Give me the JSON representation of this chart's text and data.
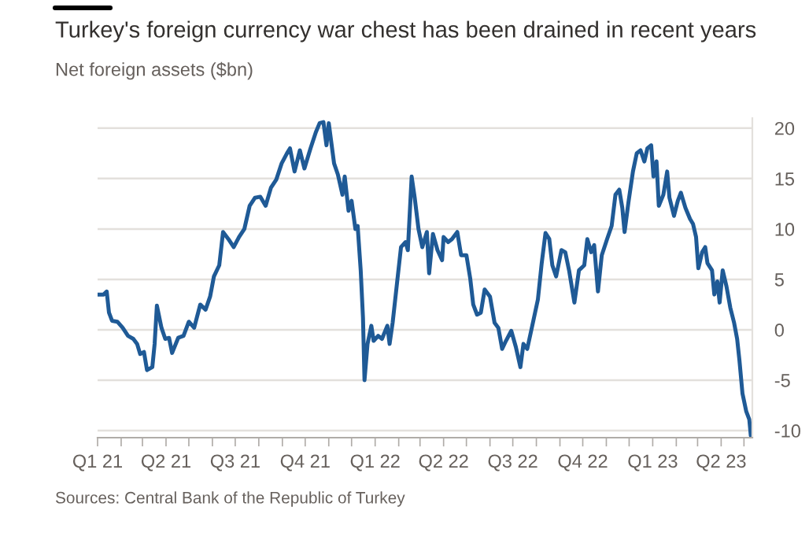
{
  "chart_data": {
    "type": "line",
    "title": "Turkey's foreign currency war chest has been drained in recent years",
    "subtitle": "Net foreign assets ($bn)",
    "annotations": [
      "Sources: Central Bank of the Republic of Turkey"
    ],
    "x": [
      "2021-01-01",
      "2021-01-09",
      "2021-01-13",
      "2021-01-16",
      "2021-01-20",
      "2021-01-27",
      "2021-02-03",
      "2021-02-10",
      "2021-02-17",
      "2021-02-22",
      "2021-02-26",
      "2021-03-03",
      "2021-03-07",
      "2021-03-14",
      "2021-03-17",
      "2021-03-20",
      "2021-03-26",
      "2021-03-31",
      "2021-04-05",
      "2021-04-09",
      "2021-04-17",
      "2021-04-24",
      "2021-05-01",
      "2021-05-08",
      "2021-05-16",
      "2021-05-23",
      "2021-05-29",
      "2021-06-03",
      "2021-06-10",
      "2021-06-15",
      "2021-06-22",
      "2021-06-29",
      "2021-07-06",
      "2021-07-13",
      "2021-07-20",
      "2021-07-27",
      "2021-08-03",
      "2021-08-10",
      "2021-08-17",
      "2021-08-24",
      "2021-08-31",
      "2021-09-07",
      "2021-09-11",
      "2021-09-17",
      "2021-09-24",
      "2021-09-30",
      "2021-10-08",
      "2021-10-15",
      "2021-10-20",
      "2021-10-25",
      "2021-10-29",
      "2021-11-01",
      "2021-11-08",
      "2021-11-13",
      "2021-11-19",
      "2021-11-22",
      "2021-11-27",
      "2021-12-01",
      "2021-12-06",
      "2021-12-09",
      "2021-12-13",
      "2021-12-16",
      "2021-12-18",
      "2021-12-22",
      "2021-12-27",
      "2021-12-30",
      "2022-01-05",
      "2022-01-10",
      "2022-01-17",
      "2022-01-20",
      "2022-01-24",
      "2022-01-30",
      "2022-02-04",
      "2022-02-10",
      "2022-02-13",
      "2022-02-18",
      "2022-02-22",
      "2022-02-27",
      "2022-03-04",
      "2022-03-10",
      "2022-03-13",
      "2022-03-18",
      "2022-03-24",
      "2022-03-30",
      "2022-04-01",
      "2022-04-07",
      "2022-04-12",
      "2022-04-19",
      "2022-04-24",
      "2022-05-01",
      "2022-05-06",
      "2022-05-10",
      "2022-05-15",
      "2022-05-20",
      "2022-05-25",
      "2022-06-01",
      "2022-06-07",
      "2022-06-12",
      "2022-06-17",
      "2022-06-22",
      "2022-06-29",
      "2022-07-05",
      "2022-07-11",
      "2022-07-15",
      "2022-07-20",
      "2022-07-28",
      "2022-08-03",
      "2022-08-08",
      "2022-08-13",
      "2022-08-18",
      "2022-08-22",
      "2022-08-27",
      "2022-09-03",
      "2022-09-08",
      "2022-09-13",
      "2022-09-20",
      "2022-09-26",
      "2022-10-03",
      "2022-10-07",
      "2022-10-12",
      "2022-10-16",
      "2022-10-21",
      "2022-10-26",
      "2022-11-02",
      "2022-11-08",
      "2022-11-13",
      "2022-11-18",
      "2022-11-22",
      "2022-11-25",
      "2022-11-30",
      "2022-12-06",
      "2022-12-11",
      "2022-12-16",
      "2022-12-21",
      "2022-12-25",
      "2022-12-30",
      "2023-01-02",
      "2023-01-06",
      "2023-01-09",
      "2023-01-15",
      "2023-01-20",
      "2023-01-23",
      "2023-01-29",
      "2023-02-03",
      "2023-02-07",
      "2023-02-13",
      "2023-02-19",
      "2023-02-23",
      "2023-02-27",
      "2023-03-02",
      "2023-03-07",
      "2023-03-11",
      "2023-03-14",
      "2023-03-20",
      "2023-03-23",
      "2023-03-27",
      "2023-03-30",
      "2023-04-03",
      "2023-04-08",
      "2023-04-13",
      "2023-04-18",
      "2023-04-22",
      "2023-04-25",
      "2023-04-29",
      "2023-05-04",
      "2023-05-08",
      "2023-05-10"
    ],
    "series": [
      {
        "color": "#1f5a96",
        "values": [
          3.5,
          3.5,
          3.8,
          1.7,
          0.9,
          0.8,
          0.2,
          -0.6,
          -0.9,
          -1.4,
          -2.4,
          -2.2,
          -4.0,
          -3.7,
          -1.4,
          2.4,
          0.2,
          -0.9,
          -0.8,
          -2.3,
          -0.8,
          -0.6,
          0.8,
          0.2,
          2.5,
          2.0,
          3.3,
          5.3,
          6.4,
          9.7,
          9.0,
          8.2,
          9.2,
          10.0,
          12.3,
          13.1,
          13.2,
          12.3,
          14.1,
          14.9,
          16.5,
          17.5,
          18.0,
          15.7,
          17.8,
          16.0,
          18.0,
          19.6,
          20.5,
          20.6,
          18.3,
          20.5,
          16.5,
          15.4,
          13.4,
          15.2,
          11.8,
          12.8,
          10.0,
          10.3,
          5.9,
          1.2,
          -5.0,
          -1.4,
          0.4,
          -1.1,
          -0.6,
          -0.9,
          0.4,
          -1.4,
          0.7,
          4.8,
          8.2,
          8.7,
          7.9,
          15.2,
          13.1,
          10.0,
          8.2,
          9.7,
          5.6,
          9.5,
          7.9,
          6.9,
          9.2,
          8.7,
          9.0,
          9.7,
          7.4,
          7.4,
          5.1,
          2.5,
          1.5,
          1.7,
          4.0,
          3.3,
          0.7,
          0.2,
          -1.9,
          -1.1,
          -0.1,
          -1.7,
          -3.7,
          -1.4,
          -1.9,
          0.9,
          3.0,
          6.6,
          9.6,
          9.0,
          6.4,
          5.3,
          7.9,
          7.7,
          5.9,
          2.7,
          5.9,
          6.4,
          9.0,
          7.7,
          8.4,
          3.8,
          7.4,
          9.0,
          10.3,
          13.4,
          13.9,
          12.1,
          9.7,
          12.6,
          15.7,
          17.5,
          17.8,
          16.7,
          18.0,
          18.3,
          15.2,
          16.7,
          12.3,
          13.4,
          15.7,
          13.1,
          11.3,
          12.8,
          13.6,
          12.1,
          11.0,
          10.5,
          9.2,
          6.1,
          7.7,
          8.2,
          6.6,
          5.9,
          3.5,
          4.8,
          2.7,
          5.9,
          4.3,
          2.2,
          0.7,
          -0.9,
          -3.0,
          -6.3,
          -8.1,
          -8.9,
          -10.5
        ]
      }
    ],
    "xlim": [
      "2021-01-01",
      "2023-05-12"
    ],
    "xticks": [
      {
        "value": "2021-01-01",
        "label": "Q1 21"
      },
      {
        "value": "2021-02-01",
        "label": null
      },
      {
        "value": "2021-03-01",
        "label": null
      },
      {
        "value": "2021-04-01",
        "label": "Q2 21"
      },
      {
        "value": "2021-05-01",
        "label": null
      },
      {
        "value": "2021-06-01",
        "label": null
      },
      {
        "value": "2021-07-01",
        "label": "Q3 21"
      },
      {
        "value": "2021-08-01",
        "label": null
      },
      {
        "value": "2021-09-01",
        "label": null
      },
      {
        "value": "2021-10-01",
        "label": "Q4 21"
      },
      {
        "value": "2021-11-01",
        "label": null
      },
      {
        "value": "2021-12-01",
        "label": null
      },
      {
        "value": "2022-01-01",
        "label": "Q1 22"
      },
      {
        "value": "2022-02-01",
        "label": null
      },
      {
        "value": "2022-03-01",
        "label": null
      },
      {
        "value": "2022-04-01",
        "label": "Q2 22"
      },
      {
        "value": "2022-05-01",
        "label": null
      },
      {
        "value": "2022-06-01",
        "label": null
      },
      {
        "value": "2022-07-01",
        "label": "Q3 22"
      },
      {
        "value": "2022-08-01",
        "label": null
      },
      {
        "value": "2022-09-01",
        "label": null
      },
      {
        "value": "2022-10-01",
        "label": "Q4 22"
      },
      {
        "value": "2022-11-01",
        "label": null
      },
      {
        "value": "2022-12-01",
        "label": null
      },
      {
        "value": "2023-01-01",
        "label": "Q1 23"
      },
      {
        "value": "2023-02-01",
        "label": null
      },
      {
        "value": "2023-03-01",
        "label": null
      },
      {
        "value": "2023-04-01",
        "label": "Q2 23"
      },
      {
        "value": "2023-05-01",
        "label": null
      }
    ],
    "ylim": [
      -10.7,
      21
    ],
    "yticks": [
      -10,
      -5,
      0,
      5,
      10,
      15,
      20
    ],
    "grid": "y"
  }
}
